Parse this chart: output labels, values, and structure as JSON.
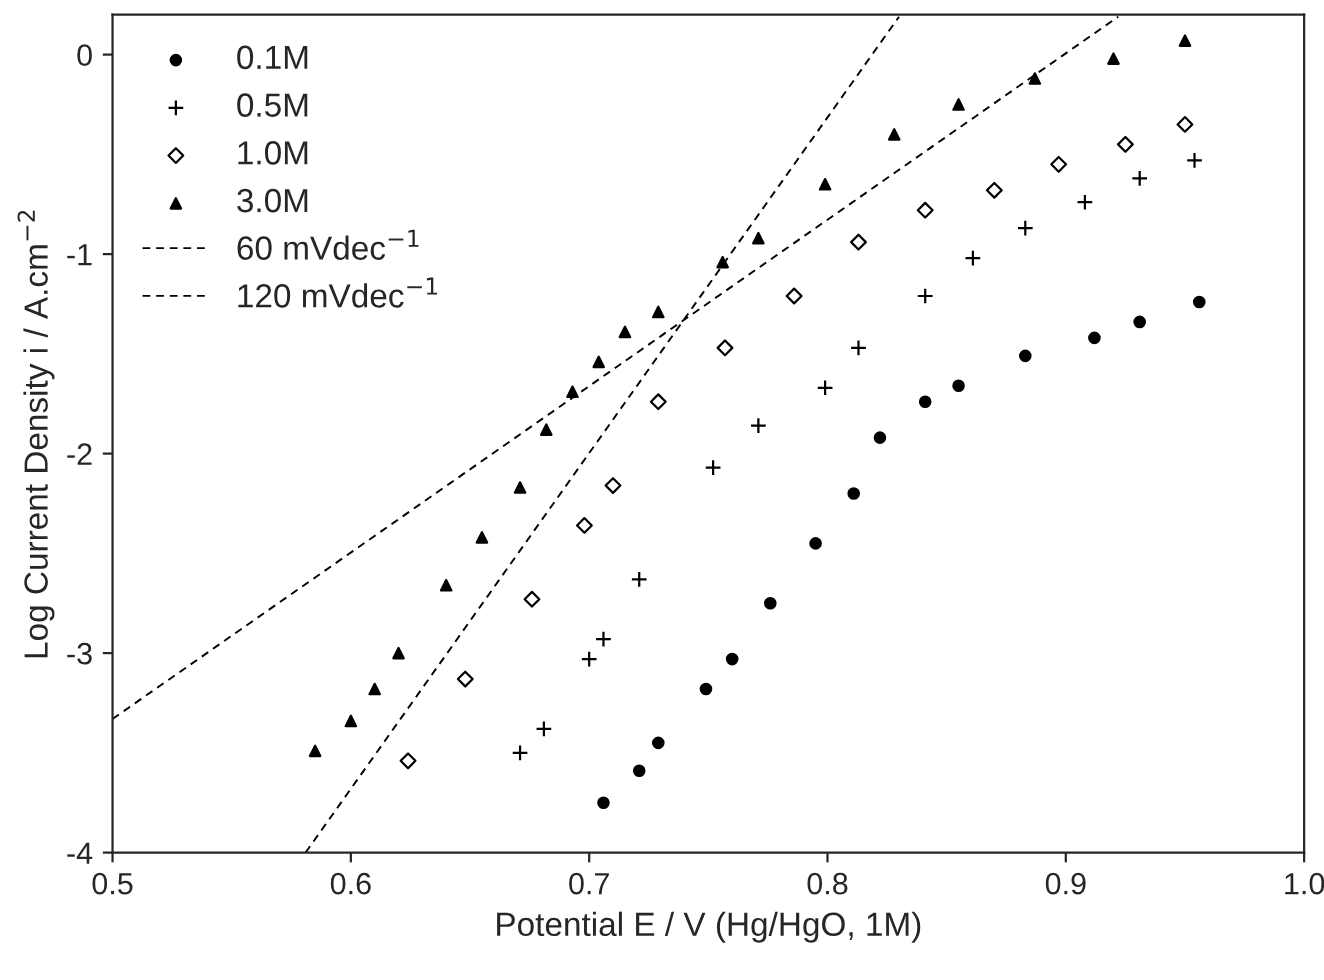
{
  "chart_data": {
    "type": "scatter",
    "xlabel": "Potential E / V (Hg/HgO, 1M)",
    "ylabel": "Log Current Density i / A.cm$^{−2}$",
    "xlim": [
      0.5,
      1.0
    ],
    "xticks": [
      0.5,
      0.6,
      0.7,
      0.8,
      0.9,
      {
        "value": 1.0,
        "label": "1.0"
      }
    ],
    "ylim": [
      -4,
      0.2
    ],
    "yticks": [
      -4,
      -3,
      -2,
      -1,
      0
    ],
    "grid": false,
    "legend": "top left",
    "series": [
      {
        "name": "0.1M",
        "color": "#000000",
        "marker": "circle",
        "x": [
          0.706,
          0.721,
          0.729,
          0.749,
          0.76,
          0.776,
          0.795,
          0.811,
          0.822,
          0.841,
          0.855,
          0.883,
          0.912,
          0.931,
          0.956
        ],
        "values": [
          -3.75,
          -3.59,
          -3.45,
          -3.18,
          -3.03,
          -2.75,
          -2.45,
          -2.2,
          -1.92,
          -1.74,
          -1.66,
          -1.51,
          -1.42,
          -1.34,
          -1.24
        ]
      },
      {
        "name": "0.5M",
        "color": "#000000",
        "marker": "cross",
        "x": [
          0.671,
          0.681,
          0.7,
          0.706,
          0.721,
          0.752,
          0.771,
          0.799,
          0.813,
          0.841,
          0.861,
          0.883,
          0.908,
          0.931,
          0.954
        ],
        "values": [
          -3.5,
          -3.38,
          -3.03,
          -2.93,
          -2.63,
          -2.07,
          -1.86,
          -1.67,
          -1.47,
          -1.21,
          -1.02,
          -0.87,
          -0.74,
          -0.62,
          -0.53
        ]
      },
      {
        "name": "1.0M",
        "color": "#000000",
        "marker": "diamond",
        "x": [
          0.624,
          0.648,
          0.676,
          0.698,
          0.71,
          0.729,
          0.757,
          0.786,
          0.813,
          0.841,
          0.87,
          0.897,
          0.925,
          0.95
        ],
        "values": [
          -3.54,
          -3.13,
          -2.73,
          -2.36,
          -2.16,
          -1.74,
          -1.47,
          -1.21,
          -0.94,
          -0.78,
          -0.68,
          -0.55,
          -0.45,
          -0.35
        ]
      },
      {
        "name": "3.0M",
        "color": "#000000",
        "marker": "triangle",
        "x": [
          0.585,
          0.6,
          0.61,
          0.62,
          0.64,
          0.655,
          0.671,
          0.682,
          0.693,
          0.704,
          0.715,
          0.729,
          0.756,
          0.771,
          0.799,
          0.828,
          0.855,
          0.887,
          0.92,
          0.95
        ],
        "values": [
          -3.49,
          -3.34,
          -3.18,
          -3.0,
          -2.66,
          -2.42,
          -2.17,
          -1.88,
          -1.69,
          -1.54,
          -1.39,
          -1.29,
          -1.04,
          -0.92,
          -0.65,
          -0.4,
          -0.25,
          -0.12,
          -0.02,
          0.07
        ]
      },
      {
        "name": "60 mVdec$^{−1}$",
        "type": "line",
        "color": "#000000",
        "marker": "none",
        "line_style": "dashed",
        "x": [
          0.581,
          0.83
        ],
        "values": [
          -4.0,
          0.19
        ]
      },
      {
        "name": "120 mVdec$^{−1}$",
        "type": "line",
        "color": "#000000",
        "marker": "none",
        "line_style": "dashed",
        "x": [
          0.5,
          0.922
        ],
        "values": [
          -3.33,
          0.19
        ]
      }
    ]
  }
}
